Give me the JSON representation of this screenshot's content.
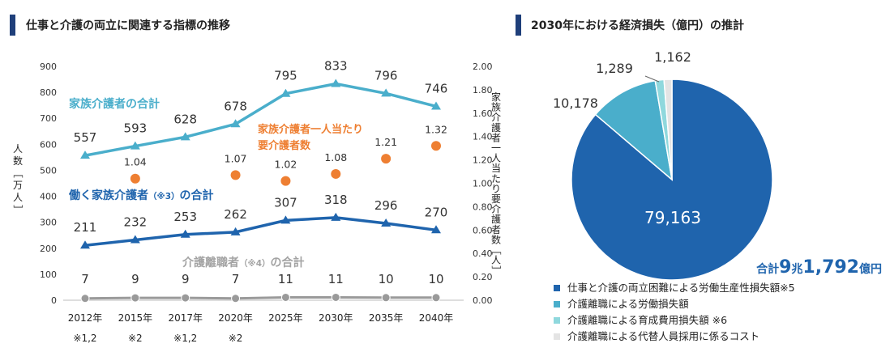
{
  "left_panel": {
    "title": "仕事と介護の両立に関連する指標の推移"
  },
  "right_panel": {
    "title": "2030年における経済損失（億円）の推計"
  },
  "chart_data": [
    {
      "type": "line",
      "title": "仕事と介護の両立に関連する指標の推移",
      "categories": [
        "2012年",
        "2015年",
        "2017年",
        "2020年",
        "2025年",
        "2030年",
        "2035年",
        "2040年"
      ],
      "category_notes": [
        "※1,2",
        "※2",
        "※1,2",
        "※2",
        "",
        "",
        "",
        ""
      ],
      "ylabel": "人数［万人］",
      "ylabel2": "家族介護者一人当たり要介護者数［人］",
      "ylim": [
        0,
        900
      ],
      "y_ticks": [
        0,
        100,
        200,
        300,
        400,
        500,
        600,
        700,
        800,
        900
      ],
      "ylim2": [
        0,
        2.0
      ],
      "y2_ticks": [
        "0.00",
        "0.20",
        "0.40",
        "0.60",
        "0.80",
        "1.00",
        "1.20",
        "1.40",
        "1.60",
        "1.80",
        "2.00"
      ],
      "grid": false,
      "series": [
        {
          "name": "家族介護者の合計",
          "axis": "left",
          "color": "#4aaecb",
          "values": [
            557,
            593,
            628,
            678,
            795,
            833,
            796,
            746
          ]
        },
        {
          "name": "働く家族介護者",
          "name_note": "（※3）",
          "name_suffix": "の合計",
          "axis": "left",
          "color": "#1f64ad",
          "values": [
            211,
            232,
            253,
            262,
            307,
            318,
            296,
            270
          ]
        },
        {
          "name": "介護離職者",
          "name_note": "（※4）",
          "name_suffix": "の合計",
          "axis": "left",
          "color": "#9a9a9a",
          "values": [
            7,
            9,
            9,
            7,
            11,
            11,
            10,
            10
          ]
        },
        {
          "name": "家族介護者一人当たり要介護者数",
          "name_lines": [
            "家族介護者一人当たり",
            "要介護者数"
          ],
          "axis": "right",
          "type": "scatter",
          "color": "#ee7f32",
          "values": [
            1.04,
            1.07,
            1.02,
            1.08,
            1.21,
            1.32
          ],
          "x_indices": [
            1,
            3,
            4,
            5,
            6,
            7
          ]
        }
      ]
    },
    {
      "type": "pie",
      "title": "2030年における経済損失（億円）の推計",
      "total_label": {
        "prefix": "合計",
        "n1": "9",
        "u1": "兆",
        "n2": "1,792",
        "u2": "億円"
      },
      "slices": [
        {
          "label": "仕事と介護の両立困難による労働生産性損失額※5",
          "value": 79163,
          "display": "79,163",
          "color": "#1f64ad"
        },
        {
          "label": "介護離職による労働損失額",
          "value": 10178,
          "display": "10,178",
          "color": "#4aaecb"
        },
        {
          "label": "介護離職による育成費用損失額 ※6",
          "value": 1289,
          "display": "1,289",
          "color": "#8fd8dd"
        },
        {
          "label": "介護離職による代替人員採用に係るコスト",
          "value": 1162,
          "display": "1,162",
          "color": "#e4e4e4"
        }
      ]
    }
  ]
}
